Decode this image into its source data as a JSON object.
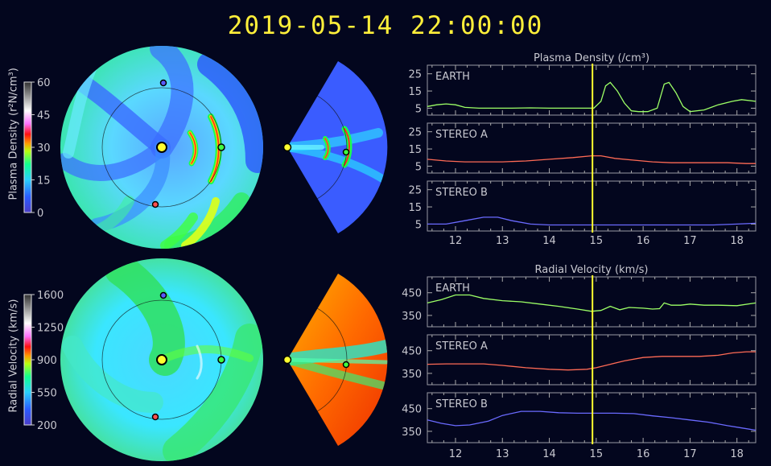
{
  "timestamp": "2019-05-14  22:00:00",
  "colorbars": {
    "density": {
      "label": "Plasma Density (r²N/cm³)",
      "ticks": [
        "60",
        "45",
        "30",
        "15",
        "0"
      ]
    },
    "velocity": {
      "label": "Radial Velocity (km/s)",
      "ticks": [
        "1600",
        "1250",
        "900",
        "550",
        "200"
      ]
    }
  },
  "chart_data": [
    {
      "type": "line",
      "title": "Plasma Density (/cm³)",
      "xlim": [
        11.4,
        18.4
      ],
      "xticks": [
        "12",
        "13",
        "14",
        "15",
        "16",
        "17",
        "18"
      ],
      "current_time_x": 14.92,
      "panels": [
        {
          "name": "EARTH",
          "color": "#9cff66",
          "ylim": [
            1,
            30
          ],
          "yticks": [
            "25",
            "15",
            "5"
          ],
          "x": [
            11.4,
            11.6,
            11.8,
            12.0,
            12.2,
            12.5,
            12.8,
            13.2,
            13.6,
            14.0,
            14.4,
            14.8,
            14.95,
            15.1,
            15.2,
            15.3,
            15.45,
            15.6,
            15.75,
            15.9,
            16.1,
            16.3,
            16.45,
            16.55,
            16.7,
            16.85,
            17.0,
            17.3,
            17.6,
            17.9,
            18.1,
            18.4
          ],
          "y": [
            6,
            7,
            7.5,
            7,
            5.5,
            5,
            5,
            5,
            5.2,
            5,
            5,
            5,
            5,
            9,
            18,
            20,
            15,
            8,
            3.5,
            3,
            3,
            5,
            19,
            20,
            14,
            6,
            3,
            4,
            7,
            9,
            10,
            9
          ]
        },
        {
          "name": "STEREO A",
          "color": "#ff6a55",
          "ylim": [
            1,
            30
          ],
          "yticks": [
            "25",
            "15",
            "5"
          ],
          "x": [
            11.4,
            11.8,
            12.2,
            12.6,
            13.0,
            13.5,
            14.0,
            14.5,
            14.9,
            15.1,
            15.4,
            15.8,
            16.2,
            16.6,
            17.0,
            17.4,
            17.8,
            18.2,
            18.4
          ],
          "y": [
            9,
            8,
            7.5,
            7.5,
            7.5,
            8,
            9,
            10,
            11,
            11,
            9.5,
            8.5,
            7.5,
            7,
            7,
            7,
            7,
            6.5,
            6.5
          ]
        },
        {
          "name": "STEREO B",
          "color": "#6a6aff",
          "ylim": [
            1,
            30
          ],
          "yticks": [
            "25",
            "15",
            "5"
          ],
          "x": [
            11.4,
            11.8,
            12.2,
            12.6,
            12.9,
            13.2,
            13.6,
            14.0,
            14.5,
            15.0,
            15.5,
            16.0,
            16.5,
            17.0,
            17.5,
            18.0,
            18.4
          ],
          "y": [
            5,
            5,
            7,
            9,
            9,
            7,
            5,
            4.5,
            4.5,
            4.5,
            4.5,
            4.5,
            4.5,
            4.5,
            4.5,
            5,
            5.5
          ]
        }
      ]
    },
    {
      "type": "line",
      "title": "Radial Velocity (km/s)",
      "xlim": [
        11.4,
        18.4
      ],
      "xticks": [
        "12",
        "13",
        "14",
        "15",
        "16",
        "17",
        "18"
      ],
      "current_time_x": 14.92,
      "panels": [
        {
          "name": "EARTH",
          "color": "#9cff66",
          "ylim": [
            300,
            520
          ],
          "yticks": [
            "450",
            "350"
          ],
          "x": [
            11.4,
            11.7,
            12.0,
            12.3,
            12.6,
            13.0,
            13.4,
            13.8,
            14.2,
            14.6,
            14.9,
            15.1,
            15.3,
            15.5,
            15.7,
            16.0,
            16.2,
            16.35,
            16.45,
            16.6,
            16.8,
            17.0,
            17.3,
            17.6,
            18.0,
            18.4
          ],
          "y": [
            405,
            420,
            440,
            440,
            425,
            415,
            410,
            400,
            390,
            378,
            368,
            372,
            390,
            375,
            385,
            382,
            378,
            380,
            405,
            395,
            395,
            400,
            395,
            395,
            393,
            405
          ]
        },
        {
          "name": "STEREO A",
          "color": "#ff6a55",
          "ylim": [
            300,
            520
          ],
          "yticks": [
            "450",
            "350"
          ],
          "x": [
            11.4,
            11.8,
            12.2,
            12.6,
            13.0,
            13.5,
            14.0,
            14.4,
            14.8,
            15.0,
            15.3,
            15.6,
            16.0,
            16.4,
            16.8,
            17.2,
            17.6,
            17.9,
            18.2,
            18.4
          ],
          "y": [
            390,
            392,
            392,
            392,
            385,
            375,
            368,
            365,
            368,
            375,
            390,
            405,
            420,
            425,
            425,
            425,
            430,
            440,
            445,
            445
          ]
        },
        {
          "name": "STEREO B",
          "color": "#6a6aff",
          "ylim": [
            300,
            520
          ],
          "yticks": [
            "450",
            "350"
          ],
          "x": [
            11.4,
            11.7,
            12.0,
            12.3,
            12.7,
            13.0,
            13.4,
            13.8,
            14.2,
            14.6,
            15.0,
            15.4,
            15.8,
            16.2,
            16.6,
            17.0,
            17.4,
            17.8,
            18.1,
            18.4
          ],
          "y": [
            400,
            385,
            375,
            378,
            395,
            420,
            438,
            438,
            432,
            430,
            430,
            430,
            428,
            418,
            410,
            400,
            390,
            375,
            365,
            355
          ]
        }
      ]
    }
  ]
}
